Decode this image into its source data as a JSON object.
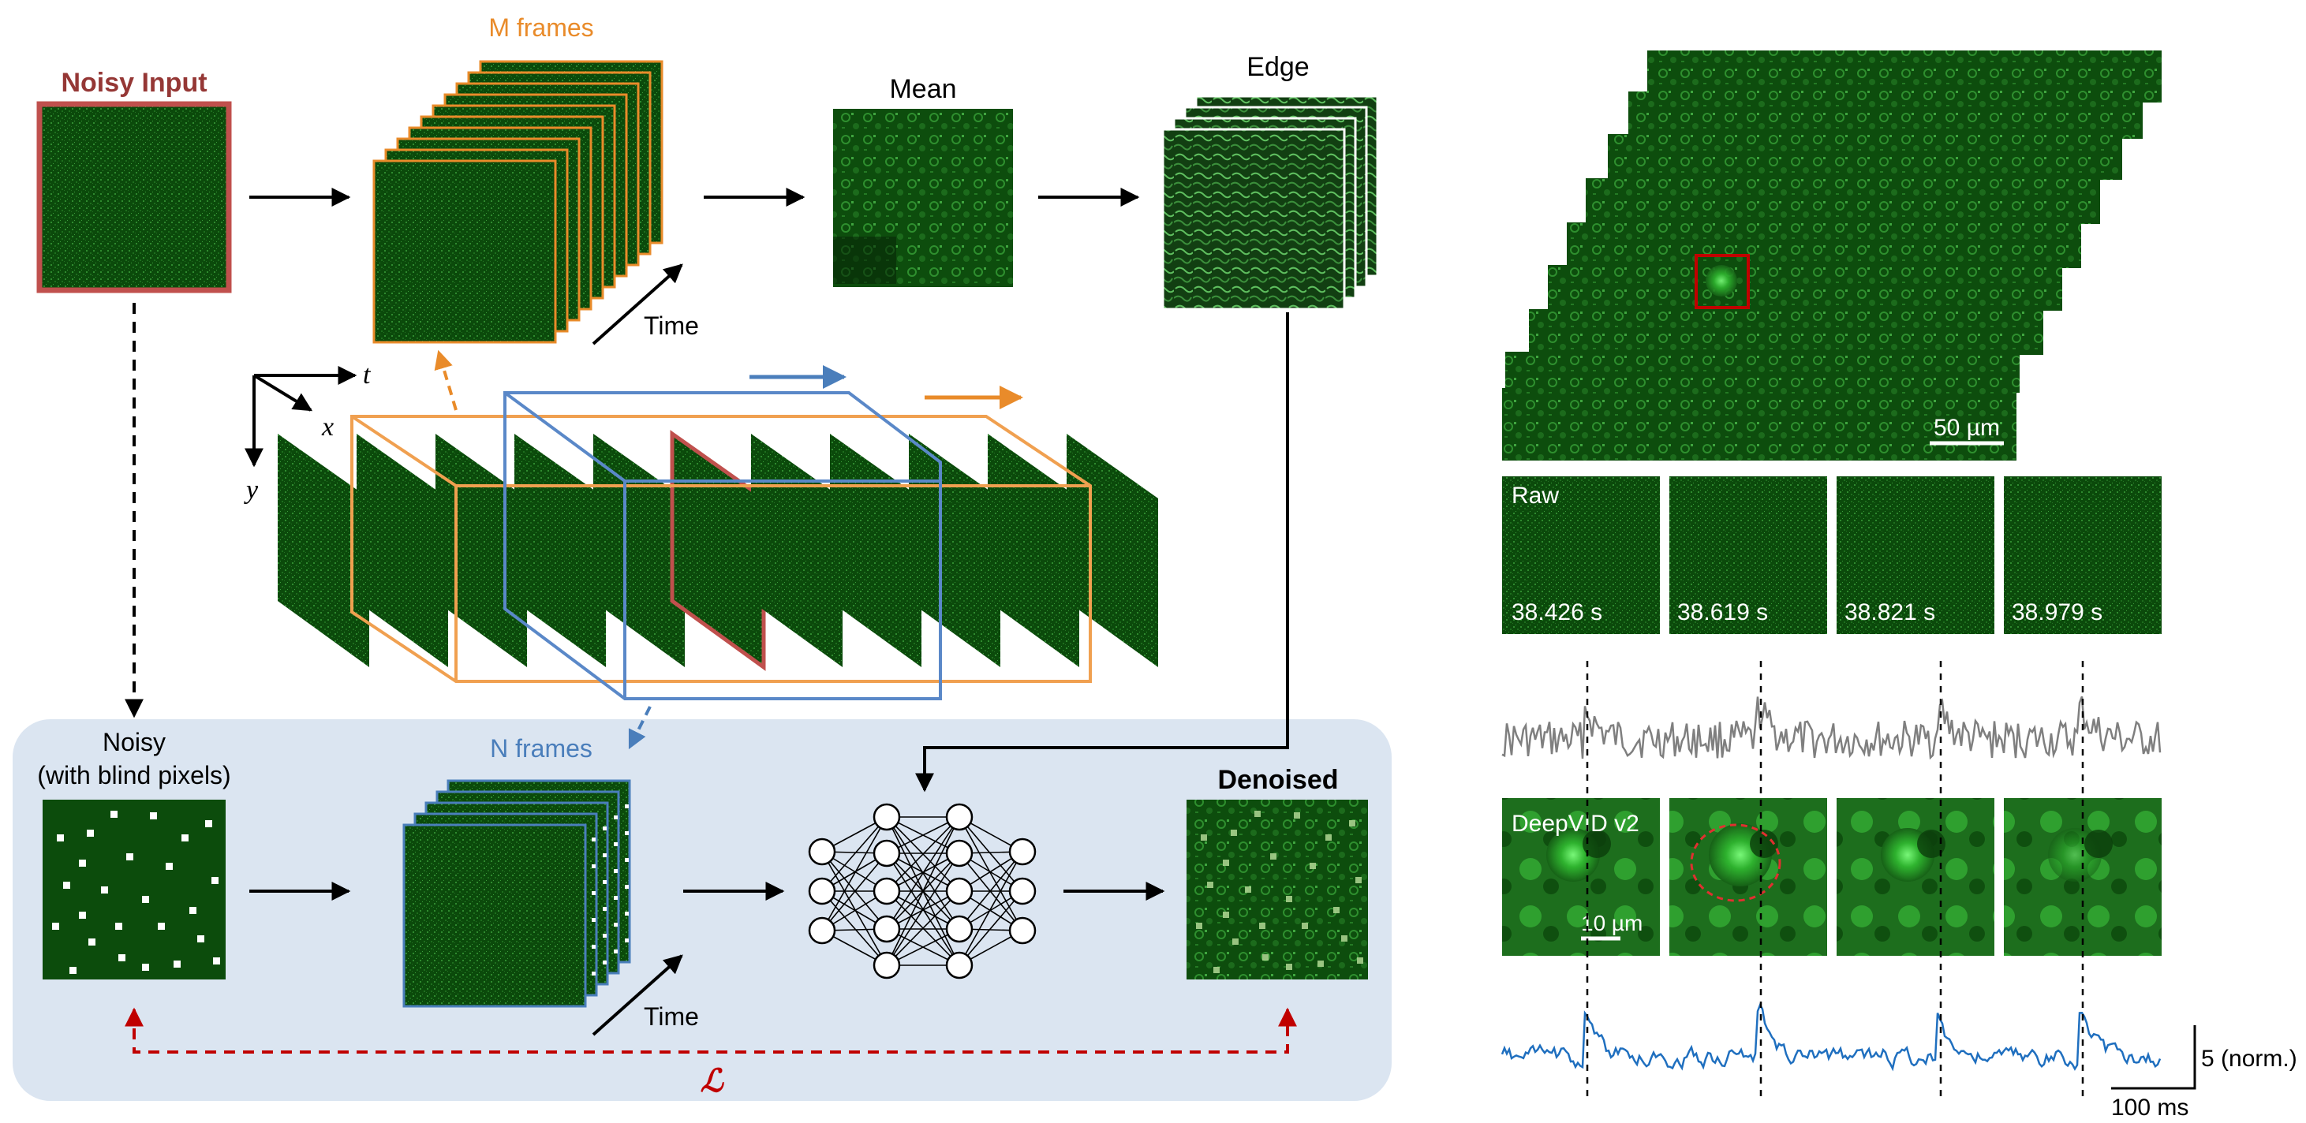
{
  "pipeline": {
    "noisy_input_title": "Noisy Input",
    "m_frames_label": "M frames",
    "mean_label": "Mean",
    "edge_label": "Edge",
    "time_label_top": "Time",
    "axis_t": "t",
    "axis_x": "x",
    "axis_y": "y",
    "noisy_blind_line1": "Noisy",
    "noisy_blind_line2": "(with blind pixels)",
    "n_frames_label": "N frames",
    "time_label_bottom": "Time",
    "denoised_label": "Denoised",
    "loss_symbol": "ℒ"
  },
  "results": {
    "stack_scalebar": "50 µm",
    "raw_label": "Raw",
    "timestamps": [
      "38.426 s",
      "38.619 s",
      "38.821 s",
      "38.979 s"
    ],
    "deepvid_label": "DeepVID v2",
    "crop_scalebar": "10 µm",
    "trace_scale_y": "5 (norm.)",
    "trace_scale_x": "100 ms"
  },
  "colors": {
    "noisy_border": "#c0504d",
    "m_frames": "#e98b2a",
    "n_frames": "#4a7ebb",
    "panel_bg": "#dbe5f1",
    "loss": "#c00000",
    "raw_trace": "#7f7f7f",
    "denoised_trace": "#1f6fbf"
  }
}
